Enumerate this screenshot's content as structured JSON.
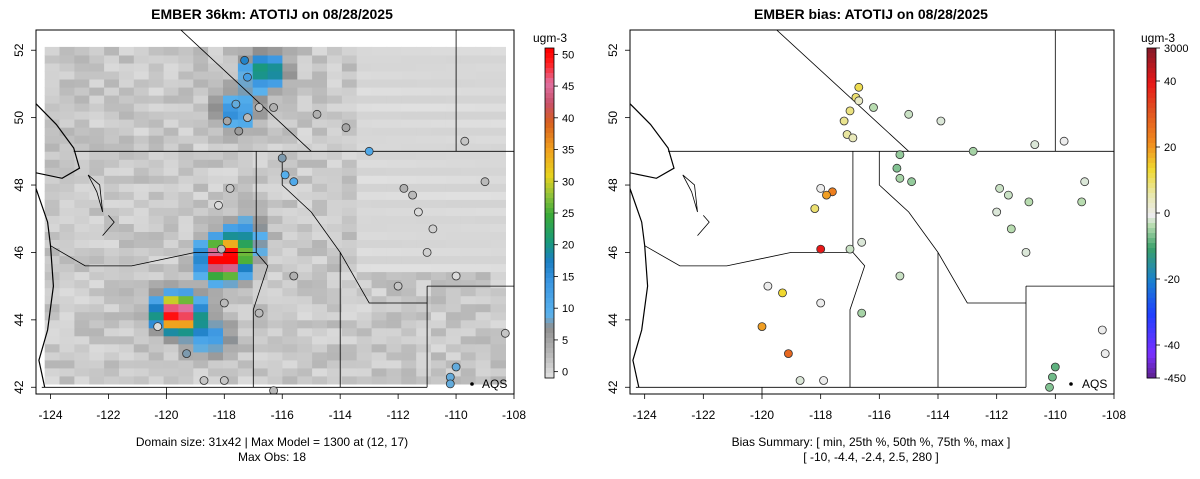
{
  "chart_data": [
    {
      "type": "heatmap",
      "title": "EMBER 36km: ATOTIJ on 08/28/2025",
      "xlim": [
        -124.5,
        -108
      ],
      "ylim": [
        42,
        52.5
      ],
      "x_ticks": [
        "-124",
        "-122",
        "-120",
        "-118",
        "-116",
        "-114",
        "-112",
        "-110",
        "-108"
      ],
      "y_ticks": [
        "42",
        "44",
        "46",
        "48",
        "50",
        "52"
      ],
      "colorbar": {
        "units": "ugm-3",
        "ticks": [
          "0",
          "5",
          "10",
          "15",
          "20",
          "25",
          "30",
          "35",
          "40",
          "45",
          "50"
        ],
        "range": [
          -1,
          51
        ]
      },
      "grid_extent": {
        "lon": [
          -124.2,
          -108.3
        ],
        "lat": [
          42.1,
          52.1
        ]
      },
      "hotspots": [
        {
          "lon": -118.0,
          "lat": 45.8,
          "value": 60
        },
        {
          "lon": -119.6,
          "lat": 44.2,
          "value": 55
        },
        {
          "lon": -116.6,
          "lat": 51.4,
          "value": 22
        },
        {
          "lon": -117.6,
          "lat": 50.2,
          "value": 15
        },
        {
          "lon": -117.3,
          "lat": 46.5,
          "value": 14
        },
        {
          "lon": -118.5,
          "lat": 43.5,
          "value": 12
        }
      ],
      "obs_sites": [
        [
          -117.3,
          51.7,
          18
        ],
        [
          -117.2,
          51.2,
          14
        ],
        [
          -117.6,
          50.4,
          10
        ],
        [
          -117.9,
          49.9,
          6
        ],
        [
          -117.5,
          49.6,
          7
        ],
        [
          -117.2,
          50.0,
          4
        ],
        [
          -116.8,
          50.3,
          3
        ],
        [
          -116.3,
          50.3,
          5
        ],
        [
          -114.8,
          50.1,
          5
        ],
        [
          -113.8,
          49.7,
          6
        ],
        [
          -116.0,
          48.8,
          9
        ],
        [
          -115.9,
          48.3,
          11
        ],
        [
          -115.6,
          48.1,
          12
        ],
        [
          -113.0,
          49.0,
          12
        ],
        [
          -117.8,
          47.9,
          3
        ],
        [
          -118.2,
          47.4,
          1
        ],
        [
          -115.6,
          45.3,
          5
        ],
        [
          -118.1,
          46.1,
          4
        ],
        [
          -118.0,
          44.5,
          4
        ],
        [
          -116.8,
          44.2,
          4
        ],
        [
          -120.3,
          43.8,
          1
        ],
        [
          -119.3,
          43.0,
          9
        ],
        [
          -118.0,
          42.2,
          3
        ],
        [
          -118.7,
          42.2,
          3
        ],
        [
          -116.3,
          41.9,
          4
        ],
        [
          -111.8,
          47.9,
          5
        ],
        [
          -111.5,
          47.7,
          4
        ],
        [
          -111.3,
          47.2,
          1
        ],
        [
          -110.8,
          46.7,
          2
        ],
        [
          -111.0,
          46.0,
          2
        ],
        [
          -112.0,
          45.0,
          3
        ],
        [
          -110.0,
          45.3,
          1
        ],
        [
          -110.0,
          42.6,
          10
        ],
        [
          -110.2,
          42.3,
          10
        ],
        [
          -110.2,
          42.1,
          10
        ],
        [
          -109.7,
          49.3,
          3
        ],
        [
          -109.0,
          48.1,
          4
        ],
        [
          -108.3,
          43.6,
          3
        ]
      ],
      "legend_label": "AQS",
      "footnote_lines": [
        "Domain size: 31x42 | Max Model = 1300 at (12, 17)",
        "Max Obs: 18"
      ]
    },
    {
      "type": "scatter",
      "title": "EMBER bias: ATOTIJ on 08/28/2025",
      "xlim": [
        -124.5,
        -108
      ],
      "ylim": [
        42,
        52.5
      ],
      "x_ticks": [
        "-124",
        "-122",
        "-120",
        "-118",
        "-116",
        "-114",
        "-112",
        "-110",
        "-108"
      ],
      "y_ticks": [
        "42",
        "44",
        "46",
        "48",
        "50",
        "52"
      ],
      "colorbar": {
        "units": "ugm-3",
        "tick_labels": [
          {
            "label": "3000",
            "value": 3000
          },
          {
            "label": "40",
            "value": 40
          },
          {
            "label": "20",
            "value": 20
          },
          {
            "label": "0",
            "value": 0
          },
          {
            "label": "-20",
            "value": -20
          },
          {
            "label": "-40",
            "value": -40
          },
          {
            "label": "-450",
            "value": -450
          }
        ]
      },
      "sites": [
        [
          -116.7,
          50.9,
          12
        ],
        [
          -116.8,
          50.6,
          10
        ],
        [
          -117.0,
          50.2,
          9
        ],
        [
          -117.2,
          49.9,
          8
        ],
        [
          -117.1,
          49.5,
          7
        ],
        [
          -116.9,
          49.4,
          5
        ],
        [
          -116.7,
          50.5,
          4
        ],
        [
          -116.2,
          50.3,
          -3
        ],
        [
          -115.0,
          50.1,
          -2
        ],
        [
          -113.9,
          49.9,
          -1
        ],
        [
          -115.3,
          48.9,
          -5
        ],
        [
          -115.4,
          48.5,
          -6
        ],
        [
          -115.3,
          48.2,
          -4
        ],
        [
          -114.9,
          48.1,
          -5
        ],
        [
          -112.8,
          49.0,
          -4
        ],
        [
          -118.0,
          47.9,
          0
        ],
        [
          -117.6,
          47.8,
          24
        ],
        [
          -117.8,
          47.7,
          20
        ],
        [
          -118.2,
          47.3,
          10
        ],
        [
          -118.0,
          46.1,
          40
        ],
        [
          -117.0,
          46.1,
          -2
        ],
        [
          -116.6,
          46.3,
          -1
        ],
        [
          -115.3,
          45.3,
          -2
        ],
        [
          -116.6,
          44.2,
          -4
        ],
        [
          -118.0,
          44.5,
          0
        ],
        [
          -119.3,
          44.8,
          14
        ],
        [
          -119.8,
          45.0,
          0
        ],
        [
          -120.0,
          43.8,
          20
        ],
        [
          -119.1,
          43.0,
          28
        ],
        [
          -118.7,
          42.2,
          -1
        ],
        [
          -117.9,
          42.2,
          0
        ],
        [
          -111.9,
          47.9,
          -2
        ],
        [
          -111.6,
          47.7,
          -2
        ],
        [
          -112.0,
          47.2,
          -1
        ],
        [
          -111.5,
          46.7,
          -3
        ],
        [
          -111.0,
          46.0,
          -1
        ],
        [
          -110.9,
          47.5,
          -3
        ],
        [
          -110.7,
          49.2,
          -1
        ],
        [
          -109.7,
          49.3,
          0
        ],
        [
          -109.0,
          48.1,
          -1
        ],
        [
          -109.1,
          47.5,
          -3
        ],
        [
          -110.0,
          42.6,
          -8
        ],
        [
          -110.1,
          42.3,
          -7
        ],
        [
          -110.2,
          42.0,
          -6
        ],
        [
          -108.4,
          43.7,
          0
        ],
        [
          -108.3,
          43.0,
          0
        ]
      ],
      "legend_label": "AQS",
      "footnote_lines": [
        "Bias Summary: [ min, 25th %, 50th %, 75th %, max ]",
        "[ -10,   -4.4,   -2.4,   2.5,   280 ]"
      ]
    }
  ]
}
